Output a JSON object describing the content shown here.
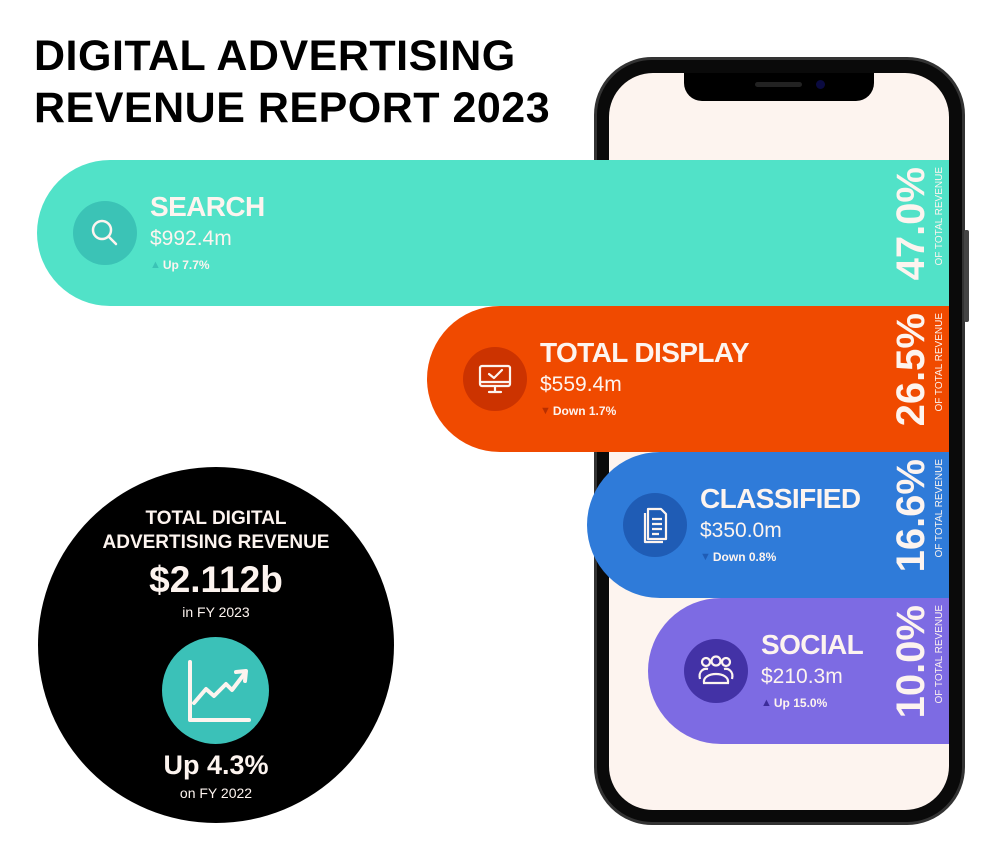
{
  "title_lines": [
    "DIGITAL ADVERTISING",
    "REVENUE REPORT 2023"
  ],
  "pct_label": "OF TOTAL REVENUE",
  "categories": [
    {
      "name": "SEARCH",
      "value": "$992.4m",
      "change": "Up 7.7%",
      "direction": "up",
      "percent": "47.0%",
      "icon": "search-icon",
      "color": "#51e2c8",
      "icon_bg": "#3bc3b6",
      "arrow_color": "#3bc3b6"
    },
    {
      "name": "TOTAL DISPLAY",
      "value": "$559.4m",
      "change": "Down 1.7%",
      "direction": "down",
      "percent": "26.5%",
      "icon": "monitor-check-icon",
      "color": "#f04a00",
      "icon_bg": "#cc3300",
      "arrow_color": "#b82f00"
    },
    {
      "name": "CLASSIFIED",
      "value": "$350.0m",
      "change": "Down 0.8%",
      "direction": "down",
      "percent": "16.6%",
      "icon": "document-icon",
      "color": "#2f7bd9",
      "icon_bg": "#1f5cb5",
      "arrow_color": "#1f5cb5"
    },
    {
      "name": "SOCIAL",
      "value": "$210.3m",
      "change": "Up 15.0%",
      "direction": "up",
      "percent": "10.0%",
      "icon": "people-group-icon",
      "color": "#7d6be3",
      "icon_bg": "#4332a6",
      "arrow_color": "#3c2c9a"
    }
  ],
  "total": {
    "label_lines": [
      "TOTAL DIGITAL",
      "ADVERTISING REVENUE"
    ],
    "value": "$2.112b",
    "period": "in FY 2023",
    "change": "Up 4.3%",
    "comparison": "on FY 2022",
    "icon": "trending-up-chart-icon"
  },
  "chart_data": {
    "type": "bar",
    "orientation": "horizontal",
    "categories": [
      "SEARCH",
      "TOTAL DISPLAY",
      "CLASSIFIED",
      "SOCIAL"
    ],
    "values": [
      992.4,
      559.4,
      350.0,
      210.3
    ],
    "value_unit": "$m",
    "share_percent": [
      47.0,
      26.5,
      16.6,
      10.0
    ],
    "change_percent": [
      7.7,
      -1.7,
      -0.8,
      15.0
    ],
    "title": "DIGITAL ADVERTISING REVENUE REPORT 2023"
  }
}
